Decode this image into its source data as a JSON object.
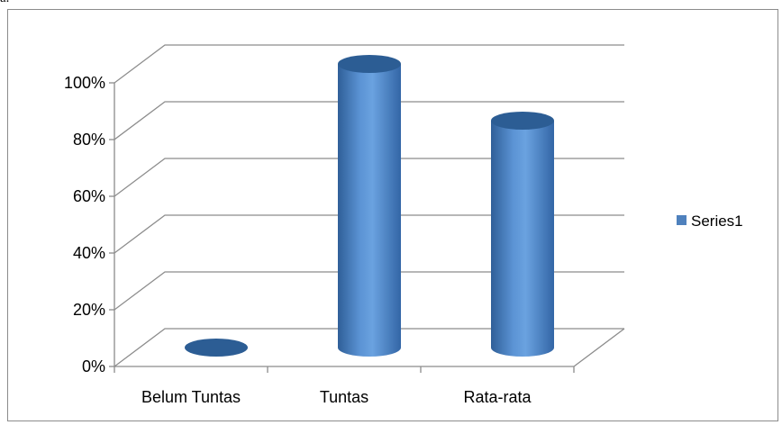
{
  "header_fragment": "a.",
  "colors": {
    "bar_body": "#4f81bd",
    "bar_top": "#2c5d94",
    "gridline": "#8c8c8c",
    "frame": "#8c8c8c",
    "text": "#000000"
  },
  "chart_data": {
    "type": "bar",
    "style": "3d-cylinder",
    "categories": [
      "Belum Tuntas",
      "Tuntas",
      "Rata-rata"
    ],
    "series": [
      {
        "name": "Series1",
        "values": [
          0,
          100,
          80
        ]
      }
    ],
    "y_tick_labels": [
      "0%",
      "20%",
      "40%",
      "60%",
      "80%",
      "100%"
    ],
    "ylim": [
      0,
      100
    ],
    "y_unit": "%",
    "grid": true,
    "legend": {
      "position": "right",
      "entries": [
        "Series1"
      ]
    }
  }
}
